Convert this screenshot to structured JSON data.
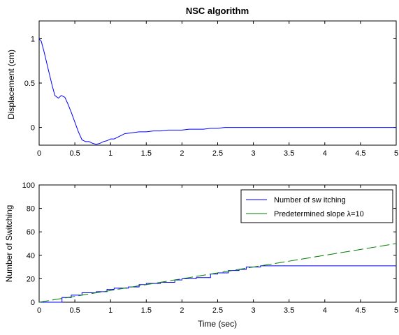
{
  "chart_data": [
    {
      "type": "line",
      "title": "NSC algorithm",
      "xlabel": "",
      "ylabel": "Displacement (cm)",
      "xlim": [
        0,
        5
      ],
      "ylim": [
        -0.2,
        1.2
      ],
      "xticks": [
        0,
        0.5,
        1,
        1.5,
        2,
        2.5,
        3,
        3.5,
        4,
        4.5,
        5
      ],
      "xtick_labels": [
        "0",
        "0.5",
        "1",
        "1.5",
        "2",
        "2.5",
        "3",
        "3.5",
        "4",
        "4.5",
        "5"
      ],
      "yticks": [
        0,
        0.5,
        1
      ],
      "ytick_labels": [
        "0",
        "0.5",
        "1"
      ],
      "grid": false,
      "series": [
        {
          "color": "#0000ff",
          "x": [
            0,
            0.03,
            0.07,
            0.12,
            0.18,
            0.22,
            0.27,
            0.31,
            0.36,
            0.4,
            0.45,
            0.5,
            0.55,
            0.6,
            0.65,
            0.7,
            0.75,
            0.8,
            0.85,
            0.9,
            0.95,
            1.0,
            1.05,
            1.1,
            1.15,
            1.2,
            1.3,
            1.4,
            1.5,
            1.6,
            1.7,
            1.8,
            1.9,
            2.0,
            2.1,
            2.2,
            2.3,
            2.4,
            2.5,
            2.6,
            3.0,
            3.5,
            4.0,
            4.5,
            5.0
          ],
          "y": [
            1.0,
            0.97,
            0.85,
            0.68,
            0.48,
            0.36,
            0.33,
            0.36,
            0.34,
            0.27,
            0.17,
            0.06,
            -0.05,
            -0.14,
            -0.16,
            -0.16,
            -0.18,
            -0.19,
            -0.18,
            -0.16,
            -0.15,
            -0.13,
            -0.13,
            -0.11,
            -0.09,
            -0.07,
            -0.06,
            -0.05,
            -0.05,
            -0.04,
            -0.04,
            -0.03,
            -0.03,
            -0.03,
            -0.02,
            -0.02,
            -0.02,
            -0.01,
            -0.01,
            0.0,
            0.0,
            0.0,
            0.0,
            0.0,
            0.0
          ]
        }
      ]
    },
    {
      "type": "line",
      "title": "",
      "xlabel": "Time (sec)",
      "ylabel": "Number of Switching",
      "xlim": [
        0,
        5
      ],
      "ylim": [
        0,
        100
      ],
      "xticks": [
        0,
        0.5,
        1,
        1.5,
        2,
        2.5,
        3,
        3.5,
        4,
        4.5,
        5
      ],
      "xtick_labels": [
        "0",
        "0.5",
        "1",
        "1.5",
        "2",
        "2.5",
        "3",
        "3.5",
        "4",
        "4.5",
        "5"
      ],
      "yticks": [
        0,
        20,
        40,
        60,
        80,
        100
      ],
      "ytick_labels": [
        "0",
        "20",
        "40",
        "60",
        "80",
        "100"
      ],
      "grid": false,
      "legend": "top-right",
      "series": [
        {
          "name": "Number of sw itching",
          "color": "#0000ff",
          "style": "step",
          "x": [
            0,
            0.32,
            0.32,
            0.45,
            0.45,
            0.6,
            0.6,
            0.8,
            0.8,
            0.95,
            0.95,
            1.05,
            1.05,
            1.25,
            1.25,
            1.4,
            1.4,
            1.5,
            1.5,
            1.7,
            1.7,
            1.9,
            1.9,
            2.0,
            2.0,
            2.2,
            2.2,
            2.4,
            2.4,
            2.5,
            2.5,
            2.65,
            2.65,
            2.8,
            2.8,
            2.9,
            2.9,
            3.1,
            3.1,
            3.2,
            3.2,
            5.0
          ],
          "y": [
            0,
            0,
            4,
            4,
            6,
            6,
            8,
            8,
            9,
            9,
            11,
            11,
            12,
            12,
            13,
            13,
            15,
            15,
            16,
            16,
            17,
            17,
            19,
            19,
            20,
            20,
            21,
            21,
            24,
            24,
            25,
            25,
            27,
            27,
            28,
            28,
            30,
            30,
            31,
            31,
            31,
            31
          ]
        },
        {
          "name": "Predetermined slope λ=10",
          "color": "#007f00",
          "style": "dashed",
          "x": [
            0,
            5
          ],
          "y": [
            0,
            50
          ]
        }
      ]
    }
  ]
}
